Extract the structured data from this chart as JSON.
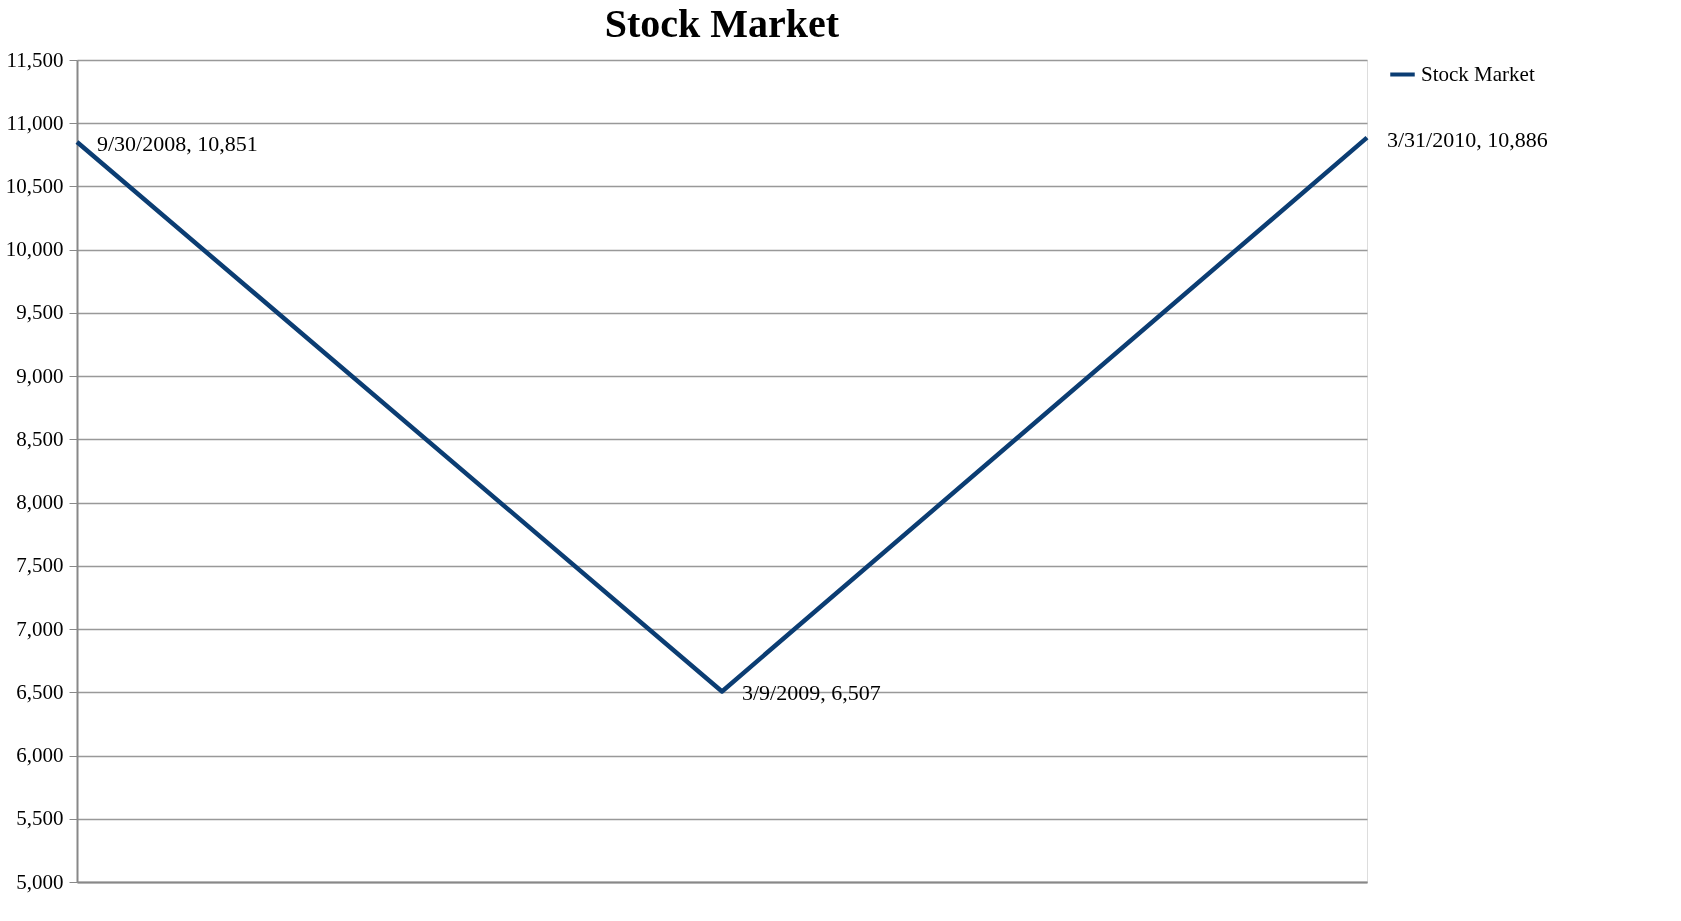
{
  "chart_data": {
    "type": "line",
    "title": "Stock Market",
    "categories": [
      null,
      null,
      null
    ],
    "series": [
      {
        "name": "Stock Market",
        "color": "#0b3d73",
        "values": [
          10851,
          6507,
          10886
        ],
        "value_labels": [
          "9/30/2008, 10,851",
          "3/9/2009, 6,507",
          "3/31/2010, 10,886"
        ]
      }
    ],
    "ylim": [
      5000,
      11500
    ],
    "yticks": [
      {
        "value": 5000,
        "label": "5,000"
      },
      {
        "value": 5500,
        "label": "5,500"
      },
      {
        "value": 6000,
        "label": "6,000"
      },
      {
        "value": 6500,
        "label": "6,500"
      },
      {
        "value": 7000,
        "label": "7,000"
      },
      {
        "value": 7500,
        "label": "7,500"
      },
      {
        "value": 8000,
        "label": "8,000"
      },
      {
        "value": 8500,
        "label": "8,500"
      },
      {
        "value": 9000,
        "label": "9,000"
      },
      {
        "value": 9500,
        "label": "9,500"
      },
      {
        "value": 10000,
        "label": "10,000"
      },
      {
        "value": 10500,
        "label": "10,500"
      },
      {
        "value": 11000,
        "label": "11,000"
      },
      {
        "value": 11500,
        "label": "11,500"
      }
    ],
    "grid": "y",
    "legend": "right",
    "marker": "none",
    "line_style": "solid",
    "tick_labels": "y"
  }
}
